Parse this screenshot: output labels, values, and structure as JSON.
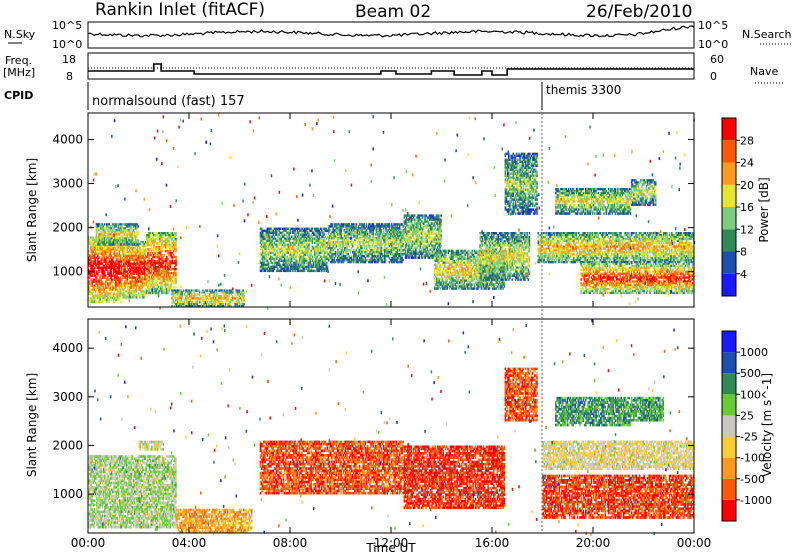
{
  "header": {
    "station": "Rankin Inlet (fitACF)",
    "beam": "Beam 02",
    "date": "26/Feb/2010"
  },
  "panel_labels": {
    "nsky": "N.Sky",
    "nsky_tick_hi": "10^5",
    "nsky_tick_lo": "10^0",
    "freq": "Freq.",
    "freq_unit": "[MHz]",
    "freq_tick_hi": "18",
    "freq_tick_lo": "8",
    "nsearch": "N.Search",
    "nave": "Nave",
    "nave_tick_hi": "60",
    "nave_tick_lo": "0",
    "cpid": "CPID",
    "cpid_mode_1": "normalsound (fast) 157",
    "cpid_mode_2": "themis 3300"
  },
  "chart_data": [
    {
      "type": "heatmap",
      "name": "power",
      "ylabel": "Slant Range [km]",
      "yticks": [
        1000,
        2000,
        3000,
        4000
      ],
      "ylim": [
        200,
        4600
      ],
      "xlabel": "",
      "xlim": [
        0,
        24
      ],
      "colorbar_label": "Power [dB]",
      "colorbar_ticks": [
        "4",
        "8",
        "12",
        "16",
        "20",
        "24",
        "28"
      ],
      "colorbar_colors": [
        "#1a1aff",
        "#1a4fb0",
        "#2e8b57",
        "#7ccd7c",
        "#e6e62e",
        "#ff9a1a",
        "#ff5a00",
        "#ff0000"
      ],
      "regions": [
        {
          "t0": 0.0,
          "t1": 1.3,
          "r0": 300,
          "r1": 1800,
          "c": 0.9
        },
        {
          "t0": 1.3,
          "t1": 2.3,
          "r0": 400,
          "r1": 1700,
          "c": 0.85
        },
        {
          "t0": 2.3,
          "t1": 3.5,
          "r0": 500,
          "r1": 1900,
          "c": 0.8
        },
        {
          "t0": 0.3,
          "t1": 2.0,
          "r0": 1600,
          "r1": 2100,
          "c": 0.55
        },
        {
          "t0": 3.3,
          "t1": 6.2,
          "r0": 200,
          "r1": 600,
          "c": 0.6
        },
        {
          "t0": 6.8,
          "t1": 9.5,
          "r0": 1000,
          "r1": 2000,
          "c": 0.45
        },
        {
          "t0": 9.5,
          "t1": 12.5,
          "r0": 1200,
          "r1": 2100,
          "c": 0.45
        },
        {
          "t0": 12.5,
          "t1": 14.0,
          "r0": 1300,
          "r1": 2300,
          "c": 0.45
        },
        {
          "t0": 13.7,
          "t1": 16.5,
          "r0": 600,
          "r1": 1500,
          "c": 0.55
        },
        {
          "t0": 15.5,
          "t1": 17.5,
          "r0": 800,
          "r1": 1900,
          "c": 0.5
        },
        {
          "t0": 16.5,
          "t1": 17.8,
          "r0": 2300,
          "r1": 3700,
          "c": 0.4
        },
        {
          "t0": 17.8,
          "t1": 24.0,
          "r0": 1200,
          "r1": 1900,
          "c": 0.6
        },
        {
          "t0": 19.5,
          "t1": 24.0,
          "r0": 500,
          "r1": 1200,
          "c": 0.8
        },
        {
          "t0": 18.5,
          "t1": 21.5,
          "r0": 2300,
          "r1": 2900,
          "c": 0.5
        },
        {
          "t0": 21.5,
          "t1": 22.5,
          "r0": 2500,
          "r1": 3100,
          "c": 0.5
        }
      ]
    },
    {
      "type": "heatmap",
      "name": "velocity",
      "ylabel": "Slant Range [km]",
      "yticks": [
        1000,
        2000,
        3000,
        4000
      ],
      "ylim": [
        200,
        4600
      ],
      "xlabel": "Time UT",
      "xticks": [
        "00:00",
        "04:00",
        "08:00",
        "12:00",
        "16:00",
        "20:00",
        "00:00"
      ],
      "xlim": [
        0,
        24
      ],
      "colorbar_label": "Velocity [m s^-1]",
      "colorbar_ticks": [
        "-1000",
        "-500",
        "-100",
        "-25",
        "25",
        "100",
        "500",
        "1000"
      ],
      "colorbar_colors": [
        "#ff0000",
        "#ff5a00",
        "#ff9a1a",
        "#ffcc33",
        "#c8c8c0",
        "#66cc33",
        "#2e8b57",
        "#1a4fb0",
        "#1a1aff"
      ],
      "regions": [
        {
          "t0": 0.0,
          "t1": 3.5,
          "r0": 300,
          "r1": 1800,
          "c": 0.55
        },
        {
          "t0": 2.0,
          "t1": 3.0,
          "r0": 1900,
          "r1": 2100,
          "c": 0.5
        },
        {
          "t0": 3.5,
          "t1": 6.5,
          "r0": 200,
          "r1": 700,
          "c": 0.3
        },
        {
          "t0": 6.8,
          "t1": 12.5,
          "r0": 1000,
          "r1": 2100,
          "c": 0.15
        },
        {
          "t0": 12.5,
          "t1": 16.5,
          "r0": 700,
          "r1": 2000,
          "c": 0.1
        },
        {
          "t0": 16.5,
          "t1": 17.8,
          "r0": 2500,
          "r1": 3600,
          "c": 0.15
        },
        {
          "t0": 18.0,
          "t1": 24.0,
          "r0": 1500,
          "r1": 2100,
          "c": 0.45
        },
        {
          "t0": 18.0,
          "t1": 24.0,
          "r0": 500,
          "r1": 1400,
          "c": 0.12
        },
        {
          "t0": 18.5,
          "t1": 21.5,
          "r0": 2400,
          "r1": 3000,
          "c": 0.7
        },
        {
          "t0": 21.5,
          "t1": 22.8,
          "r0": 2500,
          "r1": 3000,
          "c": 0.7
        }
      ]
    }
  ]
}
